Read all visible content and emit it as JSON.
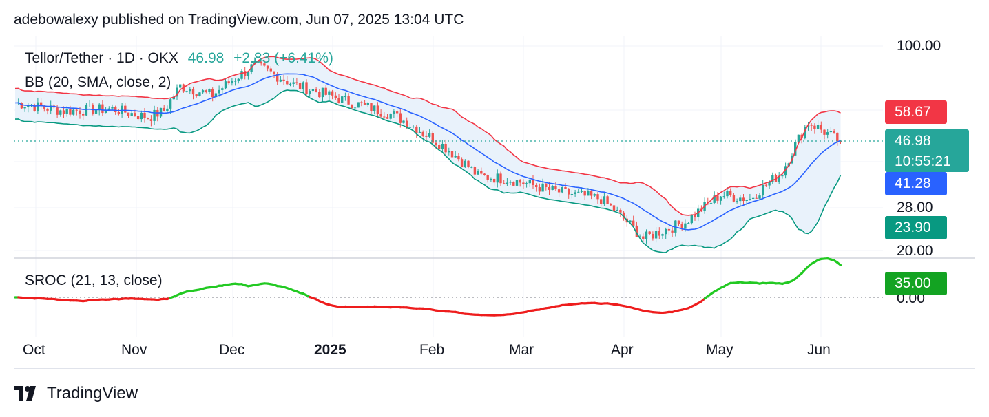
{
  "header": {
    "published": "adebowalexy published on TradingView.com, Jun 07, 2025 13:04 UTC"
  },
  "legend": {
    "symbol": "Tellor/Tether · 1D · OKX",
    "price": "46.98",
    "change": "+2.83 (+6.41%)",
    "bb": "BB (20, SMA, close, 2)",
    "sroc": "SROC (21, 13, close)"
  },
  "footer": {
    "brand": "TradingView",
    "logo_icon": "tradingview-logo-icon"
  },
  "colors": {
    "up": "#26a69a",
    "down": "#ef5350",
    "upper_band": "#f23645",
    "basis": "#2962ff",
    "lower_band": "#089981",
    "band_fill": "#e9f2fb",
    "sroc_pos": "#22c922",
    "sroc_neg": "#ee1d1d",
    "tag_green": "#13a322"
  },
  "price_tags": [
    {
      "label": "58.67",
      "color": "#f23645"
    },
    {
      "label": "46.98",
      "sub": "10:55:21",
      "color": "#26a69a"
    },
    {
      "label": "41.28",
      "color": "#2962ff"
    },
    {
      "label": "23.90",
      "color": "#089981"
    },
    {
      "label": "35.00",
      "color": "#13a322"
    }
  ],
  "chart_data": {
    "type": "candlestick",
    "title": "Tellor/Tether · 1D · OKX",
    "y_ticks": [
      "100.00",
      "28.00",
      "20.00"
    ],
    "sroc_ticks": [
      "0.00"
    ],
    "x_ticks": [
      "Oct",
      "Nov",
      "Dec",
      "2025",
      "Feb",
      "Mar",
      "Apr",
      "May",
      "Jun"
    ],
    "last_price": 46.98,
    "countdown": "10:55:21",
    "indicators": {
      "bollinger": {
        "period": 20,
        "source": "close",
        "stddev": 2,
        "upper_last": 58.67,
        "basis_last": 41.28,
        "lower_last": 23.9
      },
      "sroc": {
        "params": "21, 13, close",
        "last": 35.0
      }
    },
    "series": [
      {
        "name": "price",
        "points": [
          {
            "date": "2024-09-25",
            "value": 64
          },
          {
            "date": "2024-10-10",
            "value": 60
          },
          {
            "date": "2024-10-25",
            "value": 61
          },
          {
            "date": "2024-11-05",
            "value": 57
          },
          {
            "date": "2024-11-10",
            "value": 60
          },
          {
            "date": "2024-11-15",
            "value": 73
          },
          {
            "date": "2024-11-25",
            "value": 68
          },
          {
            "date": "2024-12-08",
            "value": 86
          },
          {
            "date": "2024-12-20",
            "value": 74
          },
          {
            "date": "2025-01-05",
            "value": 65
          },
          {
            "date": "2025-01-20",
            "value": 58
          },
          {
            "date": "2025-02-05",
            "value": 45
          },
          {
            "date": "2025-02-15",
            "value": 36
          },
          {
            "date": "2025-02-25",
            "value": 35
          },
          {
            "date": "2025-03-10",
            "value": 32
          },
          {
            "date": "2025-03-25",
            "value": 30
          },
          {
            "date": "2025-04-07",
            "value": 22
          },
          {
            "date": "2025-04-20",
            "value": 25
          },
          {
            "date": "2025-05-01",
            "value": 31
          },
          {
            "date": "2025-05-10",
            "value": 30
          },
          {
            "date": "2025-05-20",
            "value": 37
          },
          {
            "date": "2025-05-28",
            "value": 55
          },
          {
            "date": "2025-06-07",
            "value": 46.98
          }
        ]
      }
    ]
  }
}
